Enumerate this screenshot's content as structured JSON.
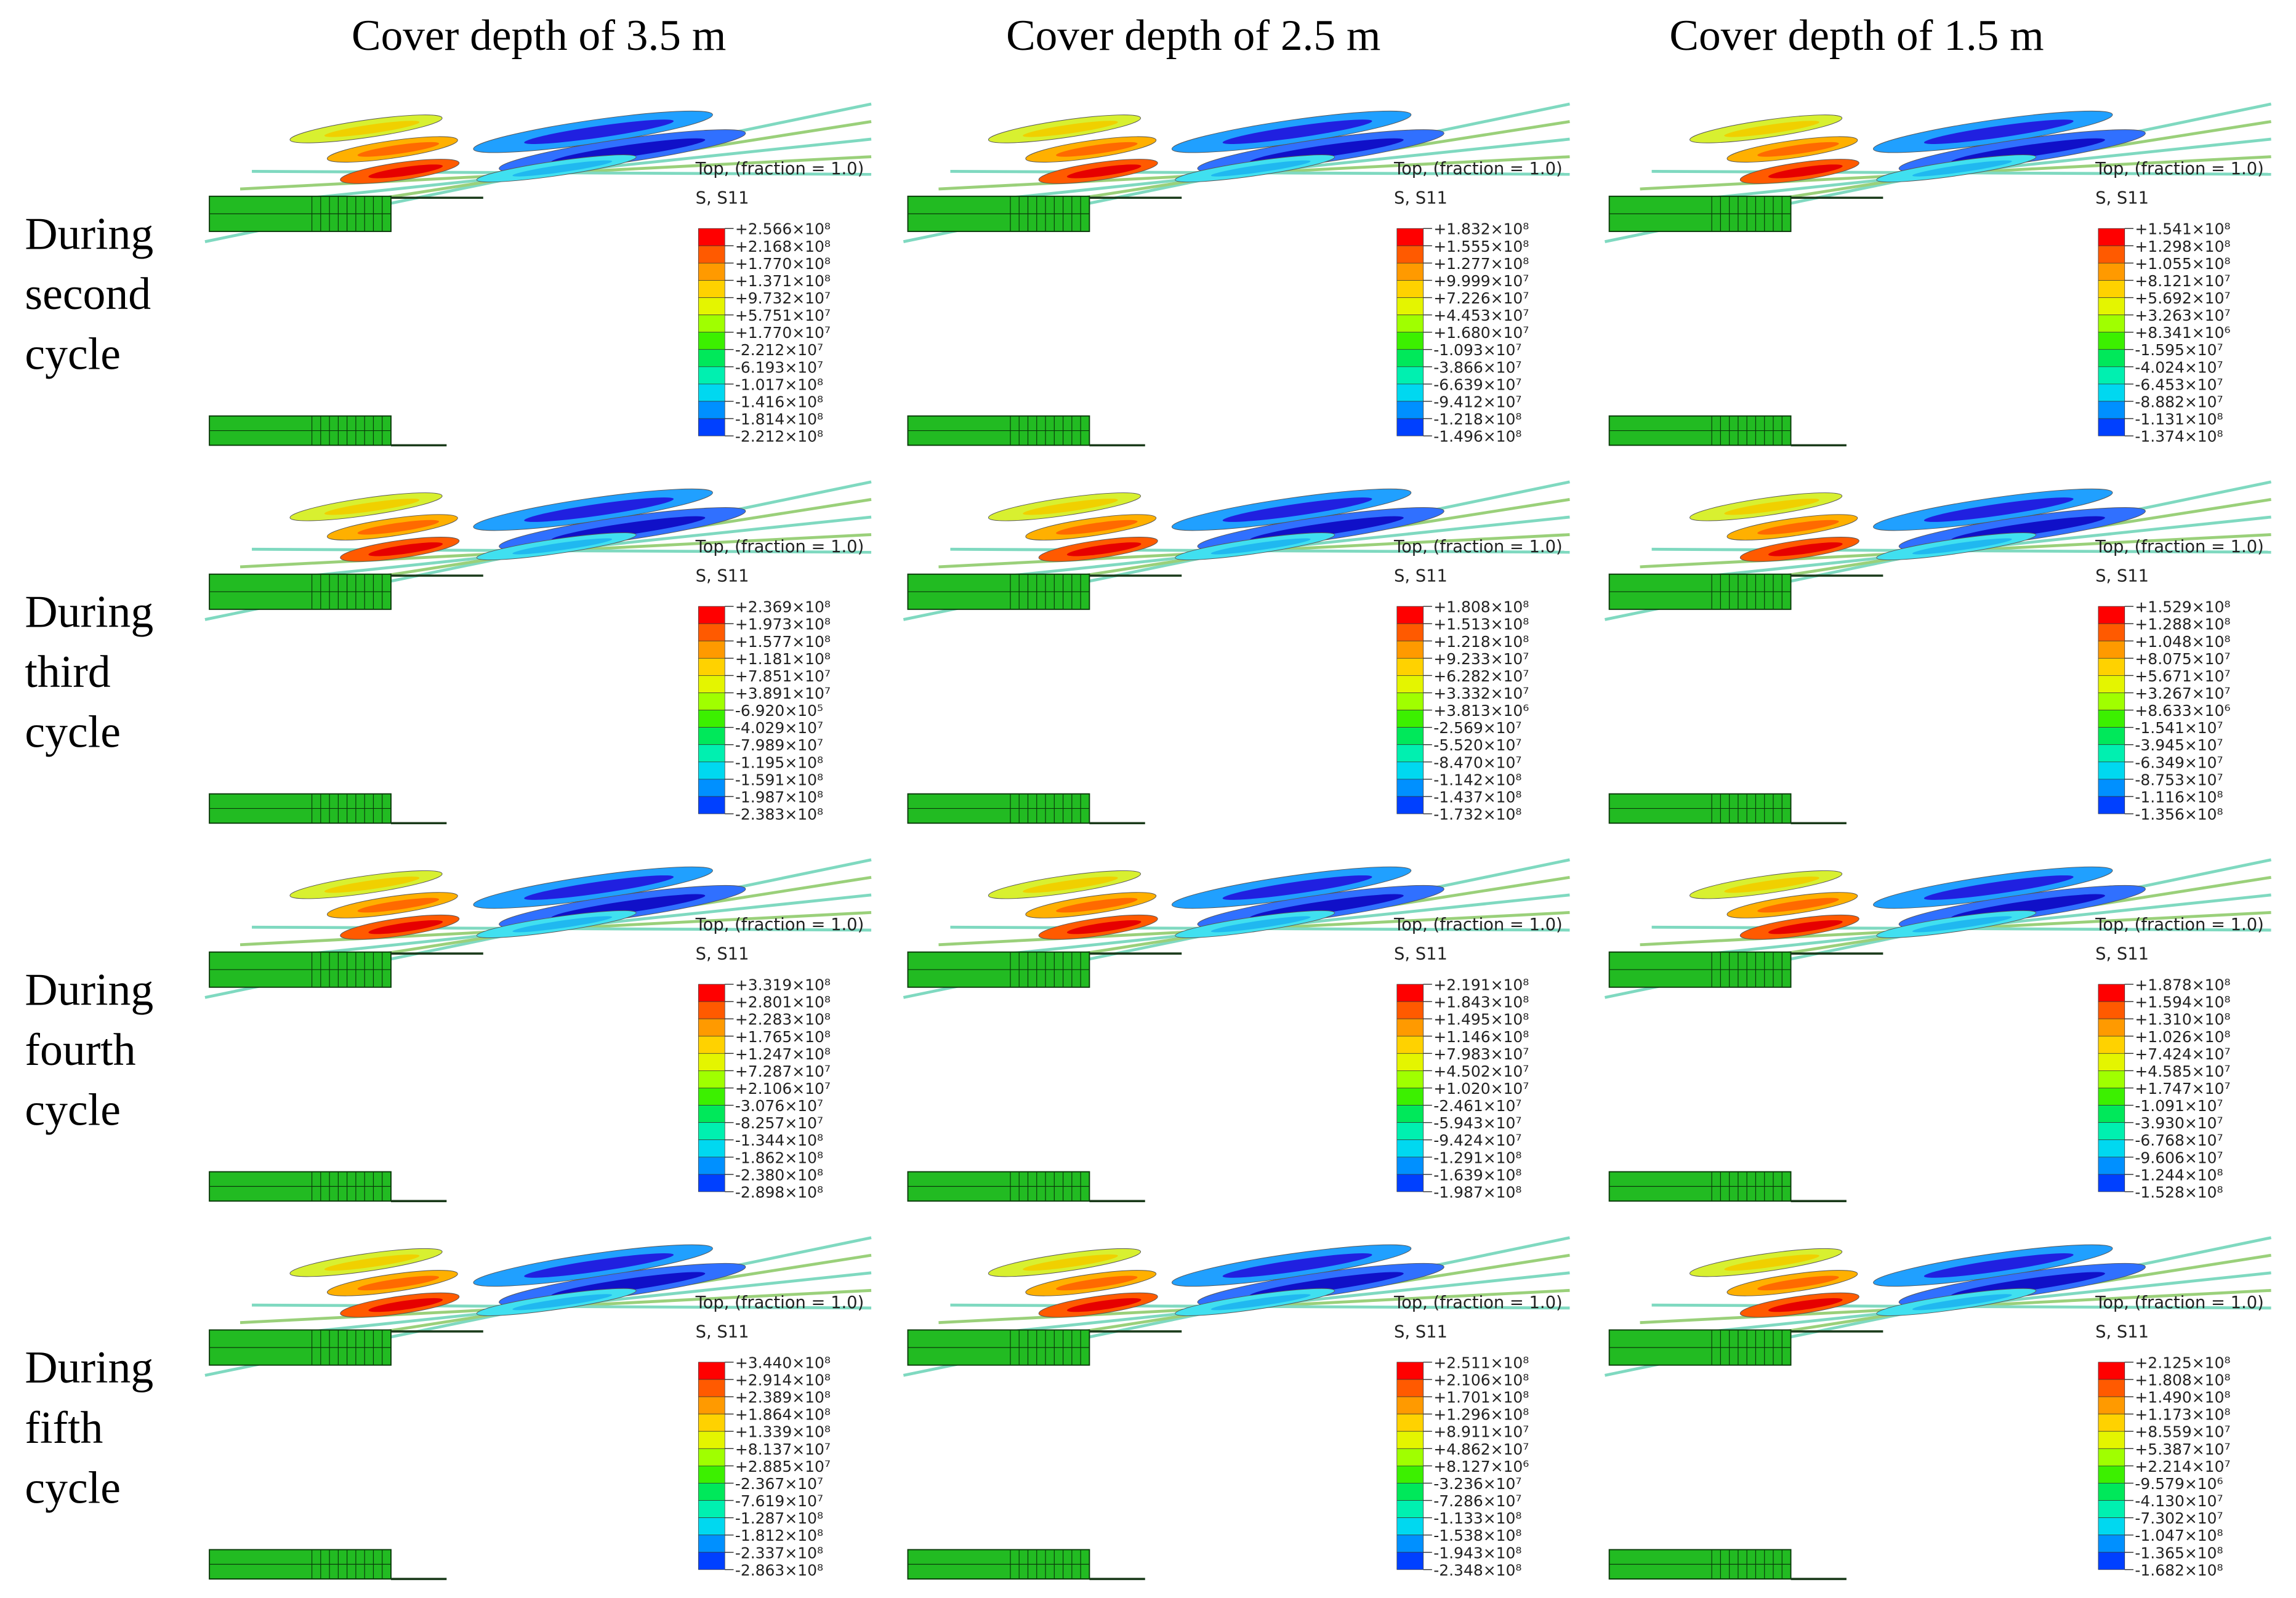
{
  "headers": [
    "Cover depth of 3.5 m",
    "Cover depth of 2.5 m",
    "Cover depth of 1.5 m"
  ],
  "rows": [
    {
      "label": [
        "During",
        "second",
        "cycle"
      ],
      "panels": [
        {
          "caption": "Top, (fraction = 1.0)",
          "variable": "S, S11",
          "legend": [
            "+2.566×10⁸",
            "+2.168×10⁸",
            "+1.770×10⁸",
            "+1.371×10⁸",
            "+9.732×10⁷",
            "+5.751×10⁷",
            "+1.770×10⁷",
            "-2.212×10⁷",
            "-6.193×10⁷",
            "-1.017×10⁸",
            "-1.416×10⁸",
            "-1.814×10⁸",
            "-2.212×10⁸"
          ]
        },
        {
          "caption": "Top, (fraction = 1.0)",
          "variable": "S, S11",
          "legend": [
            "+1.832×10⁸",
            "+1.555×10⁸",
            "+1.277×10⁸",
            "+9.999×10⁷",
            "+7.226×10⁷",
            "+4.453×10⁷",
            "+1.680×10⁷",
            "-1.093×10⁷",
            "-3.866×10⁷",
            "-6.639×10⁷",
            "-9.412×10⁷",
            "-1.218×10⁸",
            "-1.496×10⁸"
          ]
        },
        {
          "caption": "Top, (fraction = 1.0)",
          "variable": "S, S11",
          "legend": [
            "+1.541×10⁸",
            "+1.298×10⁸",
            "+1.055×10⁸",
            "+8.121×10⁷",
            "+5.692×10⁷",
            "+3.263×10⁷",
            "+8.341×10⁶",
            "-1.595×10⁷",
            "-4.024×10⁷",
            "-6.453×10⁷",
            "-8.882×10⁷",
            "-1.131×10⁸",
            "-1.374×10⁸"
          ]
        }
      ]
    },
    {
      "label": [
        "During",
        "third",
        "cycle"
      ],
      "panels": [
        {
          "caption": "Top, (fraction = 1.0)",
          "variable": "S, S11",
          "legend": [
            "+2.369×10⁸",
            "+1.973×10⁸",
            "+1.577×10⁸",
            "+1.181×10⁸",
            "+7.851×10⁷",
            "+3.891×10⁷",
            "-6.920×10⁵",
            "-4.029×10⁷",
            "-7.989×10⁷",
            "-1.195×10⁸",
            "-1.591×10⁸",
            "-1.987×10⁸",
            "-2.383×10⁸"
          ]
        },
        {
          "caption": "Top, (fraction = 1.0)",
          "variable": "S, S11",
          "legend": [
            "+1.808×10⁸",
            "+1.513×10⁸",
            "+1.218×10⁸",
            "+9.233×10⁷",
            "+6.282×10⁷",
            "+3.332×10⁷",
            "+3.813×10⁶",
            "-2.569×10⁷",
            "-5.520×10⁷",
            "-8.470×10⁷",
            "-1.142×10⁸",
            "-1.437×10⁸",
            "-1.732×10⁸"
          ]
        },
        {
          "caption": "Top, (fraction = 1.0)",
          "variable": "S, S11",
          "legend": [
            "+1.529×10⁸",
            "+1.288×10⁸",
            "+1.048×10⁸",
            "+8.075×10⁷",
            "+5.671×10⁷",
            "+3.267×10⁷",
            "+8.633×10⁶",
            "-1.541×10⁷",
            "-3.945×10⁷",
            "-6.349×10⁷",
            "-8.753×10⁷",
            "-1.116×10⁸",
            "-1.356×10⁸"
          ]
        }
      ]
    },
    {
      "label": [
        "During",
        "fourth",
        "cycle"
      ],
      "panels": [
        {
          "caption": "Top, (fraction = 1.0)",
          "variable": "S, S11",
          "legend": [
            "+3.319×10⁸",
            "+2.801×10⁸",
            "+2.283×10⁸",
            "+1.765×10⁸",
            "+1.247×10⁸",
            "+7.287×10⁷",
            "+2.106×10⁷",
            "-3.076×10⁷",
            "-8.257×10⁷",
            "-1.344×10⁸",
            "-1.862×10⁸",
            "-2.380×10⁸",
            "-2.898×10⁸"
          ]
        },
        {
          "caption": "Top, (fraction = 1.0)",
          "variable": "S, S11",
          "legend": [
            "+2.191×10⁸",
            "+1.843×10⁸",
            "+1.495×10⁸",
            "+1.146×10⁸",
            "+7.983×10⁷",
            "+4.502×10⁷",
            "+1.020×10⁷",
            "-2.461×10⁷",
            "-5.943×10⁷",
            "-9.424×10⁷",
            "-1.291×10⁸",
            "-1.639×10⁸",
            "-1.987×10⁸"
          ]
        },
        {
          "caption": "Top, (fraction = 1.0)",
          "variable": "S, S11",
          "legend": [
            "+1.878×10⁸",
            "+1.594×10⁸",
            "+1.310×10⁸",
            "+1.026×10⁸",
            "+7.424×10⁷",
            "+4.585×10⁷",
            "+1.747×10⁷",
            "-1.091×10⁷",
            "-3.930×10⁷",
            "-6.768×10⁷",
            "-9.606×10⁷",
            "-1.244×10⁸",
            "-1.528×10⁸"
          ]
        }
      ]
    },
    {
      "label": [
        "During",
        "fifth",
        "cycle"
      ],
      "panels": [
        {
          "caption": "Top, (fraction = 1.0)",
          "variable": "S, S11",
          "legend": [
            "+3.440×10⁸",
            "+2.914×10⁸",
            "+2.389×10⁸",
            "+1.864×10⁸",
            "+1.339×10⁸",
            "+8.137×10⁷",
            "+2.885×10⁷",
            "-2.367×10⁷",
            "-7.619×10⁷",
            "-1.287×10⁸",
            "-1.812×10⁸",
            "-2.337×10⁸",
            "-2.863×10⁸"
          ]
        },
        {
          "caption": "Top, (fraction = 1.0)",
          "variable": "S, S11",
          "legend": [
            "+2.511×10⁸",
            "+2.106×10⁸",
            "+1.701×10⁸",
            "+1.296×10⁸",
            "+8.911×10⁷",
            "+4.862×10⁷",
            "+8.127×10⁶",
            "-3.236×10⁷",
            "-7.286×10⁷",
            "-1.133×10⁸",
            "-1.538×10⁸",
            "-1.943×10⁸",
            "-2.348×10⁸"
          ]
        },
        {
          "caption": "Top, (fraction = 1.0)",
          "variable": "S, S11",
          "legend": [
            "+2.125×10⁸",
            "+1.808×10⁸",
            "+1.490×10⁸",
            "+1.173×10⁸",
            "+8.559×10⁷",
            "+5.387×10⁷",
            "+2.214×10⁷",
            "-9.579×10⁶",
            "-4.130×10⁷",
            "-7.302×10⁷",
            "-1.047×10⁸",
            "-1.365×10⁸",
            "-1.682×10⁸"
          ]
        }
      ]
    }
  ]
}
